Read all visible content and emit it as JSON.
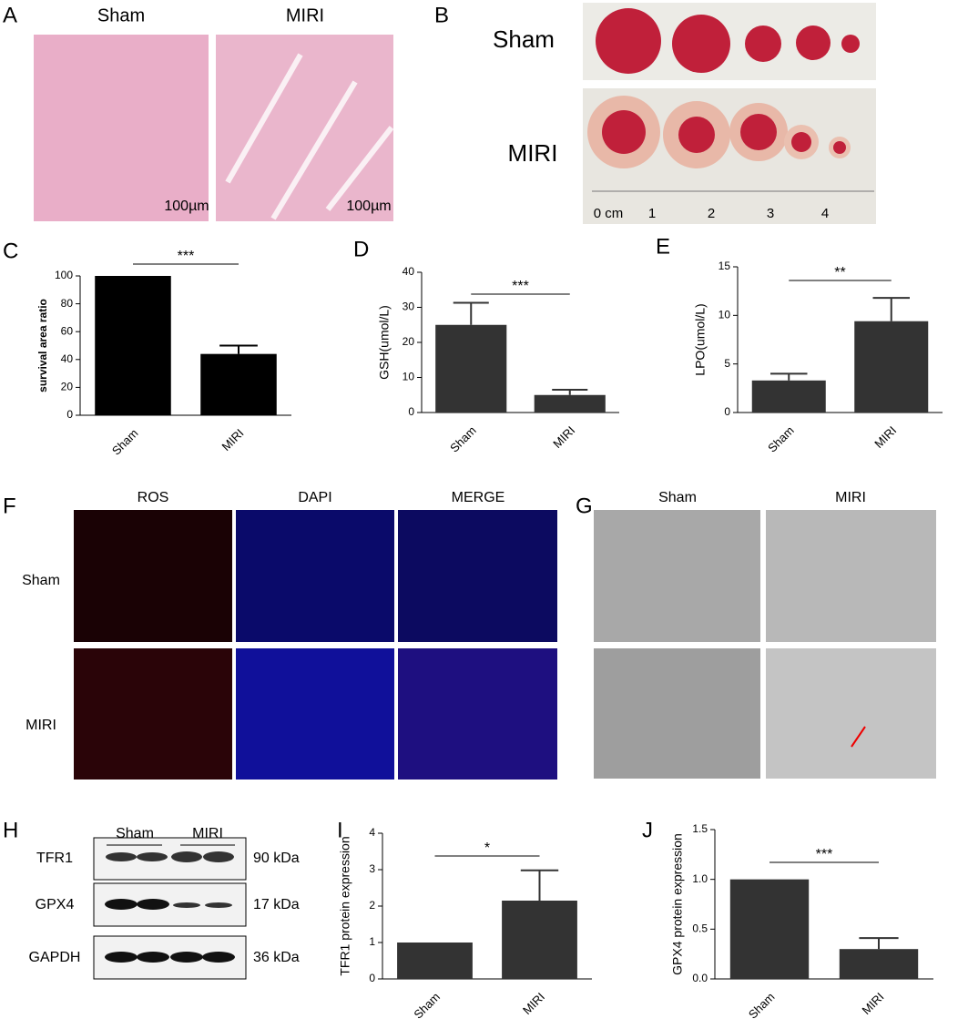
{
  "figure": {
    "letters": [
      "A",
      "B",
      "C",
      "D",
      "E",
      "F",
      "G",
      "H",
      "I",
      "J"
    ],
    "a": {
      "groups": [
        "Sham",
        "MIRI"
      ],
      "scale_bars": [
        "100µm",
        "100µm"
      ]
    },
    "b": {
      "groups": [
        "Sham",
        "MIRI"
      ],
      "ruler": [
        "0 cm",
        "1",
        "2",
        "3",
        "4"
      ]
    },
    "f": {
      "channels": [
        "ROS",
        "DAPI",
        "MERGE"
      ],
      "groups": [
        "Sham",
        "MIRI"
      ]
    },
    "g": {
      "groups": [
        "Sham",
        "MIRI"
      ]
    },
    "h": {
      "groups": [
        "Sham",
        "MIRI"
      ],
      "proteins": [
        "TFR1",
        "GPX4",
        "GAPDH"
      ],
      "sizes": [
        "90 kDa",
        "17 kDa",
        "36 kDa"
      ]
    }
  },
  "chart_data": [
    {
      "type": "bar",
      "ylabel": "survival area ratio",
      "categories": [
        "Sham",
        "MIRI"
      ],
      "values": [
        100,
        44
      ],
      "errors": [
        0,
        6
      ],
      "color": "#000000",
      "ylim": [
        0,
        100
      ],
      "yticks": [
        0,
        20,
        40,
        60,
        80,
        100
      ],
      "annotation": "***"
    },
    {
      "type": "bar",
      "ylabel": "GSH(umol/L)",
      "categories": [
        "Sham",
        "MIRI"
      ],
      "values": [
        25,
        5
      ],
      "errors": [
        6.3,
        1.5
      ],
      "color": "#333333",
      "ylim": [
        0,
        40
      ],
      "yticks": [
        0,
        10,
        20,
        30,
        40
      ],
      "annotation": "***"
    },
    {
      "type": "bar",
      "ylabel": "LPO(umol/L)",
      "categories": [
        "Sham",
        "MIRI"
      ],
      "values": [
        3.3,
        9.4
      ],
      "errors": [
        0.7,
        2.4
      ],
      "color": "#333333",
      "ylim": [
        0,
        15
      ],
      "yticks": [
        0,
        5,
        10,
        15
      ],
      "annotation": "**"
    },
    {
      "type": "bar",
      "ylabel": "TFR1 protein expression",
      "categories": [
        "Sham",
        "MIRI"
      ],
      "values": [
        1,
        2.15
      ],
      "errors": [
        0,
        0.83
      ],
      "color": "#333333",
      "ylim": [
        0,
        4
      ],
      "yticks": [
        0,
        1,
        2,
        3,
        4
      ],
      "annotation": "*"
    },
    {
      "type": "bar",
      "ylabel": "GPX4 protein expression",
      "categories": [
        "Sham",
        "MIRI"
      ],
      "values": [
        1,
        0.3
      ],
      "errors": [
        0,
        0.11
      ],
      "color": "#333333",
      "ylim": [
        0,
        1.5
      ],
      "yticks": [
        {
          "value": 0,
          "label": "0.0"
        },
        {
          "value": 0.5,
          "label": "0.5"
        },
        {
          "value": 1,
          "label": "1.0"
        },
        {
          "value": 1.5,
          "label": "1.5"
        }
      ],
      "annotation": "***"
    }
  ]
}
